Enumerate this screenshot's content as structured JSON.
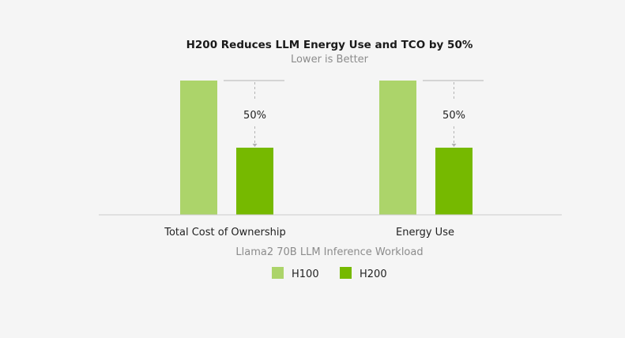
{
  "chart_data": {
    "type": "bar",
    "title": "H200 Reduces LLM Energy Use and TCO by 50%",
    "subtitle": "Lower is Better",
    "xlabel": "Llama2 70B LLM Inference Workload",
    "ylabel": "",
    "categories": [
      "Total Cost of Ownership",
      "Energy Use"
    ],
    "series": [
      {
        "name": "H100",
        "values": [
          1.0,
          1.0
        ]
      },
      {
        "name": "H200",
        "values": [
          0.5,
          0.5
        ]
      }
    ],
    "ylim": [
      0,
      1
    ],
    "annotations": [
      "50%",
      "50%"
    ],
    "legend_position": "bottom-center",
    "grid": false,
    "colors": {
      "H100": "#acd46a",
      "H200": "#76b900",
      "axis": "#cccccc",
      "guide": "#b3b3b3"
    }
  }
}
